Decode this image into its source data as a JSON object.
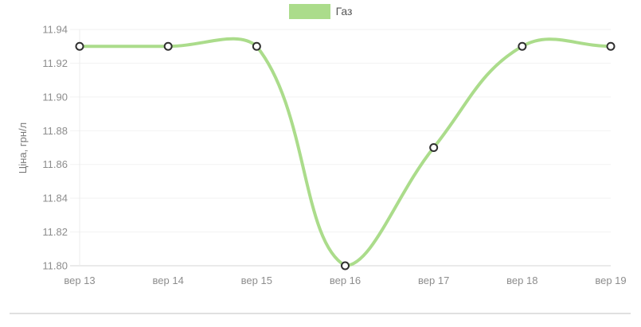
{
  "legend": {
    "position": "top-center",
    "items": [
      {
        "label": "Газ",
        "swatch_color": "#abdc8b"
      }
    ]
  },
  "chart_data": {
    "type": "line",
    "title": "",
    "x_labels": [
      "вер 13",
      "вер 14",
      "вер 15",
      "вер 16",
      "вер 17",
      "вер 18",
      "вер 19"
    ],
    "series": [
      {
        "name": "Газ",
        "values": [
          11.93,
          11.93,
          11.93,
          11.8,
          11.87,
          11.93,
          11.93
        ],
        "line_color": "#abdc8b",
        "line_width": 4,
        "smooth": true,
        "point_fill": "#ffffff",
        "point_border_color": "#2f2f2f"
      }
    ],
    "xlabel": "",
    "ylabel": "Ціна, грн/л",
    "ylim": [
      11.8,
      11.94
    ],
    "yticks": [
      11.8,
      11.82,
      11.84,
      11.86,
      11.88,
      11.9,
      11.92,
      11.94
    ],
    "ytick_labels": [
      "11.80",
      "11.82",
      "11.84",
      "11.86",
      "11.88",
      "11.90",
      "11.92",
      "11.94"
    ],
    "grid": "horizontal",
    "legend_position": "top"
  },
  "theme": {
    "grid_color": "#f2f2f2",
    "axis_line_color": "#d6d6d6",
    "first_column_grid_color": "#ececec",
    "tick_text_color": "#8d8d8d",
    "axis_title_color": "#787878",
    "legend_text_color": "#565656",
    "divider_color": "#e0e0e0",
    "background": "#ffffff"
  }
}
